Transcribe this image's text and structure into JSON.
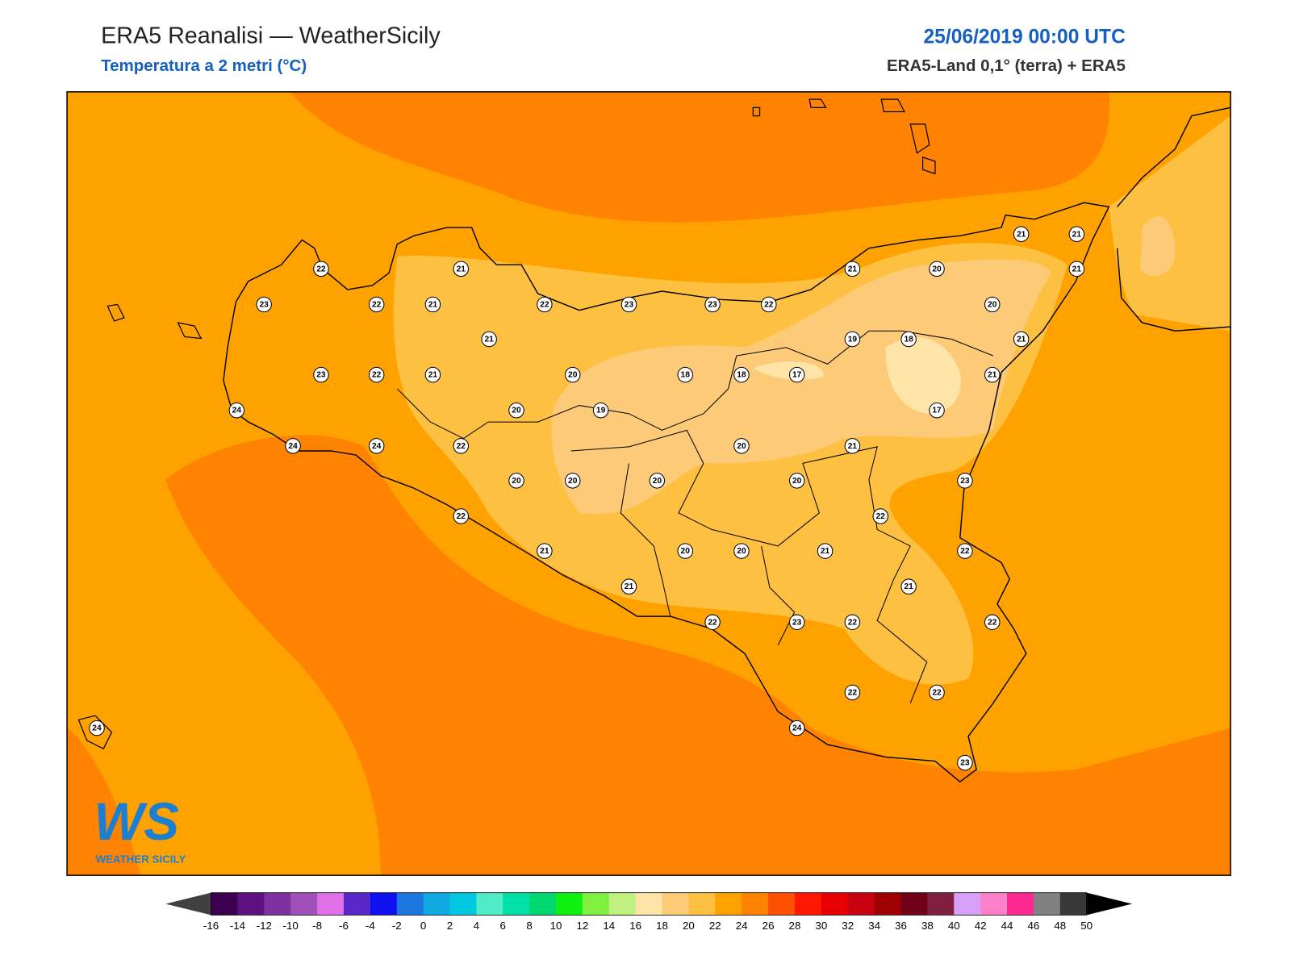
{
  "header": {
    "title": "ERA5 Reanalisi — WeatherSicily",
    "subtitle": "Temperatura a 2 metri (°C)",
    "date": "25/06/2019 00:00 UTC",
    "source": "ERA5-Land 0,1° (terra) + ERA5"
  },
  "stations": [
    22,
    21,
    23,
    22,
    21,
    22,
    23,
    23,
    22,
    21,
    23,
    22,
    21,
    20,
    18,
    18,
    17,
    24,
    20,
    19,
    24,
    24,
    22,
    20,
    20,
    20,
    20,
    21,
    20,
    22,
    21,
    20,
    20,
    21,
    21,
    22,
    23,
    22,
    21,
    20,
    21,
    21,
    21,
    20,
    19,
    18,
    21,
    21,
    17,
    23,
    22,
    22,
    21,
    22,
    22,
    22,
    24,
    23,
    24
  ],
  "logo": {
    "letters": "WS",
    "name": "WEATHER SICILY"
  },
  "colorbar": {
    "ticks": [
      -16,
      -14,
      -12,
      -10,
      -8,
      -6,
      -4,
      -2,
      0,
      2,
      4,
      6,
      8,
      10,
      12,
      14,
      16,
      18,
      20,
      22,
      24,
      26,
      28,
      30,
      32,
      34,
      36,
      38,
      40,
      42,
      44,
      46,
      48,
      50
    ],
    "colors": [
      "#3d0050",
      "#5e127f",
      "#7f30a0",
      "#a050b8",
      "#e070e8",
      "#5a28c8",
      "#1010f0",
      "#1c78e0",
      "#10a8e0",
      "#00c8e0",
      "#50ecc8",
      "#00e0a8",
      "#00d870",
      "#10f010",
      "#80f040",
      "#c0f080",
      "#ffe4a8",
      "#fdca78",
      "#fec040",
      "#ffa200",
      "#ff8200",
      "#ff5000",
      "#ff1800",
      "#e80000",
      "#c80010",
      "#a00000",
      "#700018",
      "#802040",
      "#d8a0f8",
      "#ff80c8",
      "#ff2890",
      "#808080",
      "#383838"
    ],
    "under_color": "#404040",
    "over_color": "#000000"
  }
}
